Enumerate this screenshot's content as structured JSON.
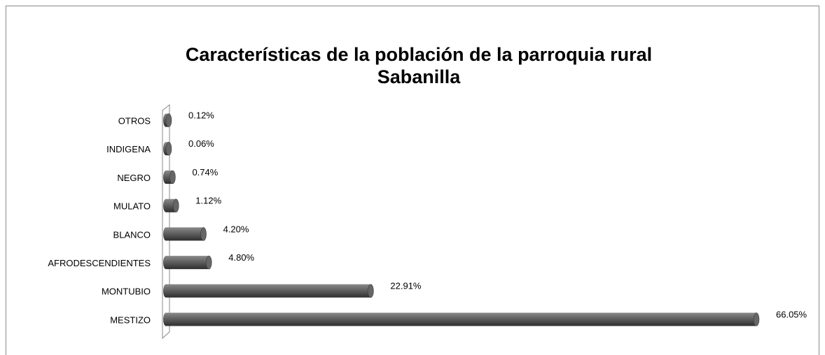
{
  "chart_data": {
    "type": "bar",
    "orientation": "horizontal",
    "title": "Características de la población de la parroquia rural",
    "subtitle": "Sabanilla",
    "categories": [
      "MESTIZO",
      "MONTUBIO",
      "AFRODESCENDIENTES",
      "BLANCO",
      "MULATO",
      "NEGRO",
      "INDIGENA",
      "OTROS"
    ],
    "values": [
      66.05,
      22.91,
      4.8,
      4.2,
      1.12,
      0.74,
      0.06,
      0.12
    ],
    "value_labels": [
      "66.05%",
      "22.91%",
      "4.80%",
      "4.20%",
      "1.12%",
      "0.74%",
      "0.06%",
      "0.12%"
    ],
    "color": "#555555"
  }
}
